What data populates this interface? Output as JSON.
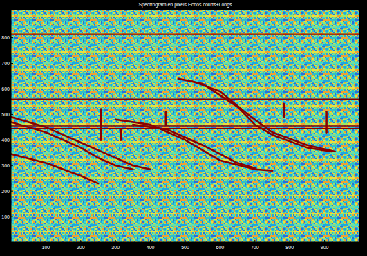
{
  "chart_data": {
    "type": "line",
    "title": "Spectrogram en pixels Echos courts+Longs",
    "xlim": [
      0,
      1000
    ],
    "ylim": [
      0,
      910
    ],
    "xticks": [
      100,
      200,
      300,
      400,
      500,
      600,
      700,
      800,
      900
    ],
    "yticks": [
      100,
      200,
      300,
      400,
      500,
      600,
      700,
      800
    ],
    "grid": false,
    "series": [
      {
        "color": "#8b0000",
        "x": [
          0,
          1000
        ],
        "values": [
          815,
          815
        ]
      },
      {
        "color": "#8b0000",
        "x": [
          0,
          1000
        ],
        "values": [
          560,
          560
        ]
      },
      {
        "color": "#8b0000",
        "x": [
          0,
          1000
        ],
        "values": [
          445,
          445
        ]
      },
      {
        "color": "#8b0000",
        "x": [
          0,
          1000
        ],
        "values": [
          455,
          455
        ]
      },
      {
        "color": "#8b0000",
        "x": [
          0,
          100,
          200,
          300,
          350,
          400
        ],
        "values": [
          490,
          450,
          390,
          330,
          300,
          285
        ]
      },
      {
        "color": "#8b0000",
        "x": [
          0,
          100,
          200,
          250,
          300,
          350
        ],
        "values": [
          470,
          430,
          370,
          330,
          300,
          285
        ]
      },
      {
        "color": "#8b0000",
        "x": [
          0,
          100,
          200,
          250
        ],
        "values": [
          345,
          310,
          260,
          230
        ]
      },
      {
        "color": "#8b0000",
        "x": [
          300,
          400,
          500,
          600,
          700,
          750
        ],
        "values": [
          480,
          460,
          400,
          320,
          285,
          280
        ]
      },
      {
        "color": "#8b0000",
        "x": [
          350,
          450,
          550,
          650,
          700
        ],
        "values": [
          460,
          440,
          380,
          310,
          290
        ]
      },
      {
        "color": "#8b0000",
        "x": [
          480,
          550,
          650,
          700,
          750,
          850,
          920
        ],
        "values": [
          640,
          620,
          530,
          460,
          420,
          370,
          355
        ]
      },
      {
        "color": "#8b0000",
        "x": [
          520,
          600,
          680,
          750,
          850,
          930
        ],
        "values": [
          630,
          590,
          500,
          430,
          380,
          355
        ]
      },
      {
        "color": "#8b0000",
        "x": [
          258,
          258
        ],
        "values": [
          400,
          520
        ]
      },
      {
        "color": "#8b0000",
        "x": [
          315,
          315
        ],
        "values": [
          400,
          440
        ]
      },
      {
        "color": "#8b0000",
        "x": [
          445,
          445
        ],
        "values": [
          460,
          510
        ]
      },
      {
        "color": "#8b0000",
        "x": [
          783,
          783
        ],
        "values": [
          490,
          540
        ]
      },
      {
        "color": "#8b0000",
        "x": [
          905,
          905
        ],
        "values": [
          430,
          510
        ]
      }
    ]
  }
}
